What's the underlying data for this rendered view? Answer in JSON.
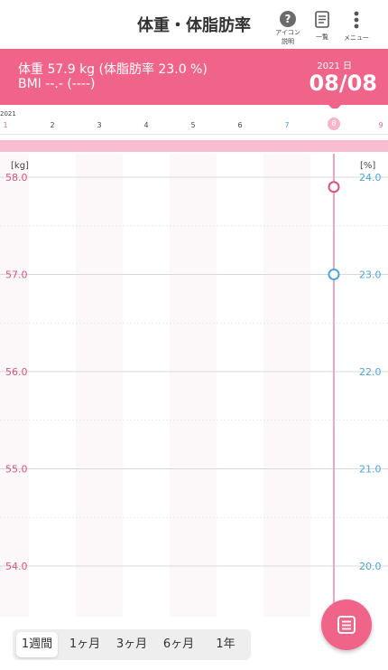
{
  "header": {
    "title": "体重・体脂肪率",
    "help_label": "アイコン説明",
    "list_label": "一覧",
    "menu_label": "メニュー"
  },
  "summary": {
    "line1": "体重  57.9 kg  (体脂肪率  23.0 %)",
    "line2": "BMI  --.-  (----)",
    "year_day": "2021  日",
    "date": "08/08"
  },
  "axis": {
    "year": "2021",
    "days": [
      "1",
      "2",
      "3",
      "4",
      "5",
      "6",
      "7",
      "8",
      "9"
    ],
    "selected_day": "8"
  },
  "chart_data": {
    "type": "line",
    "x": [
      "1",
      "2",
      "3",
      "4",
      "5",
      "6",
      "7",
      "8",
      "9"
    ],
    "series": [
      {
        "name": "体重",
        "values": [
          null,
          null,
          null,
          null,
          null,
          null,
          null,
          57.9,
          null
        ],
        "color": "#d9557d"
      },
      {
        "name": "体脂肪率",
        "values": [
          null,
          null,
          null,
          null,
          null,
          null,
          null,
          23.0,
          null
        ],
        "color": "#4aa7d9"
      }
    ],
    "y_left": {
      "unit": "[kg]",
      "ticks": [
        "58.0",
        "57.0",
        "56.0",
        "55.0",
        "54.0"
      ],
      "range": [
        53.5,
        58.0
      ]
    },
    "y_right": {
      "unit": "[%]",
      "ticks": [
        "24.0",
        "23.0",
        "22.0",
        "21.0",
        "20.0"
      ],
      "range": [
        19.5,
        24.0
      ]
    }
  },
  "periods": [
    "1週間",
    "1ヶ月",
    "3ヶ月",
    "6ヶ月",
    "1年"
  ],
  "selected_period": "1週間",
  "colors": {
    "accent": "#f0648a",
    "weight": "#d9557d",
    "fat": "#4aa7d9"
  }
}
